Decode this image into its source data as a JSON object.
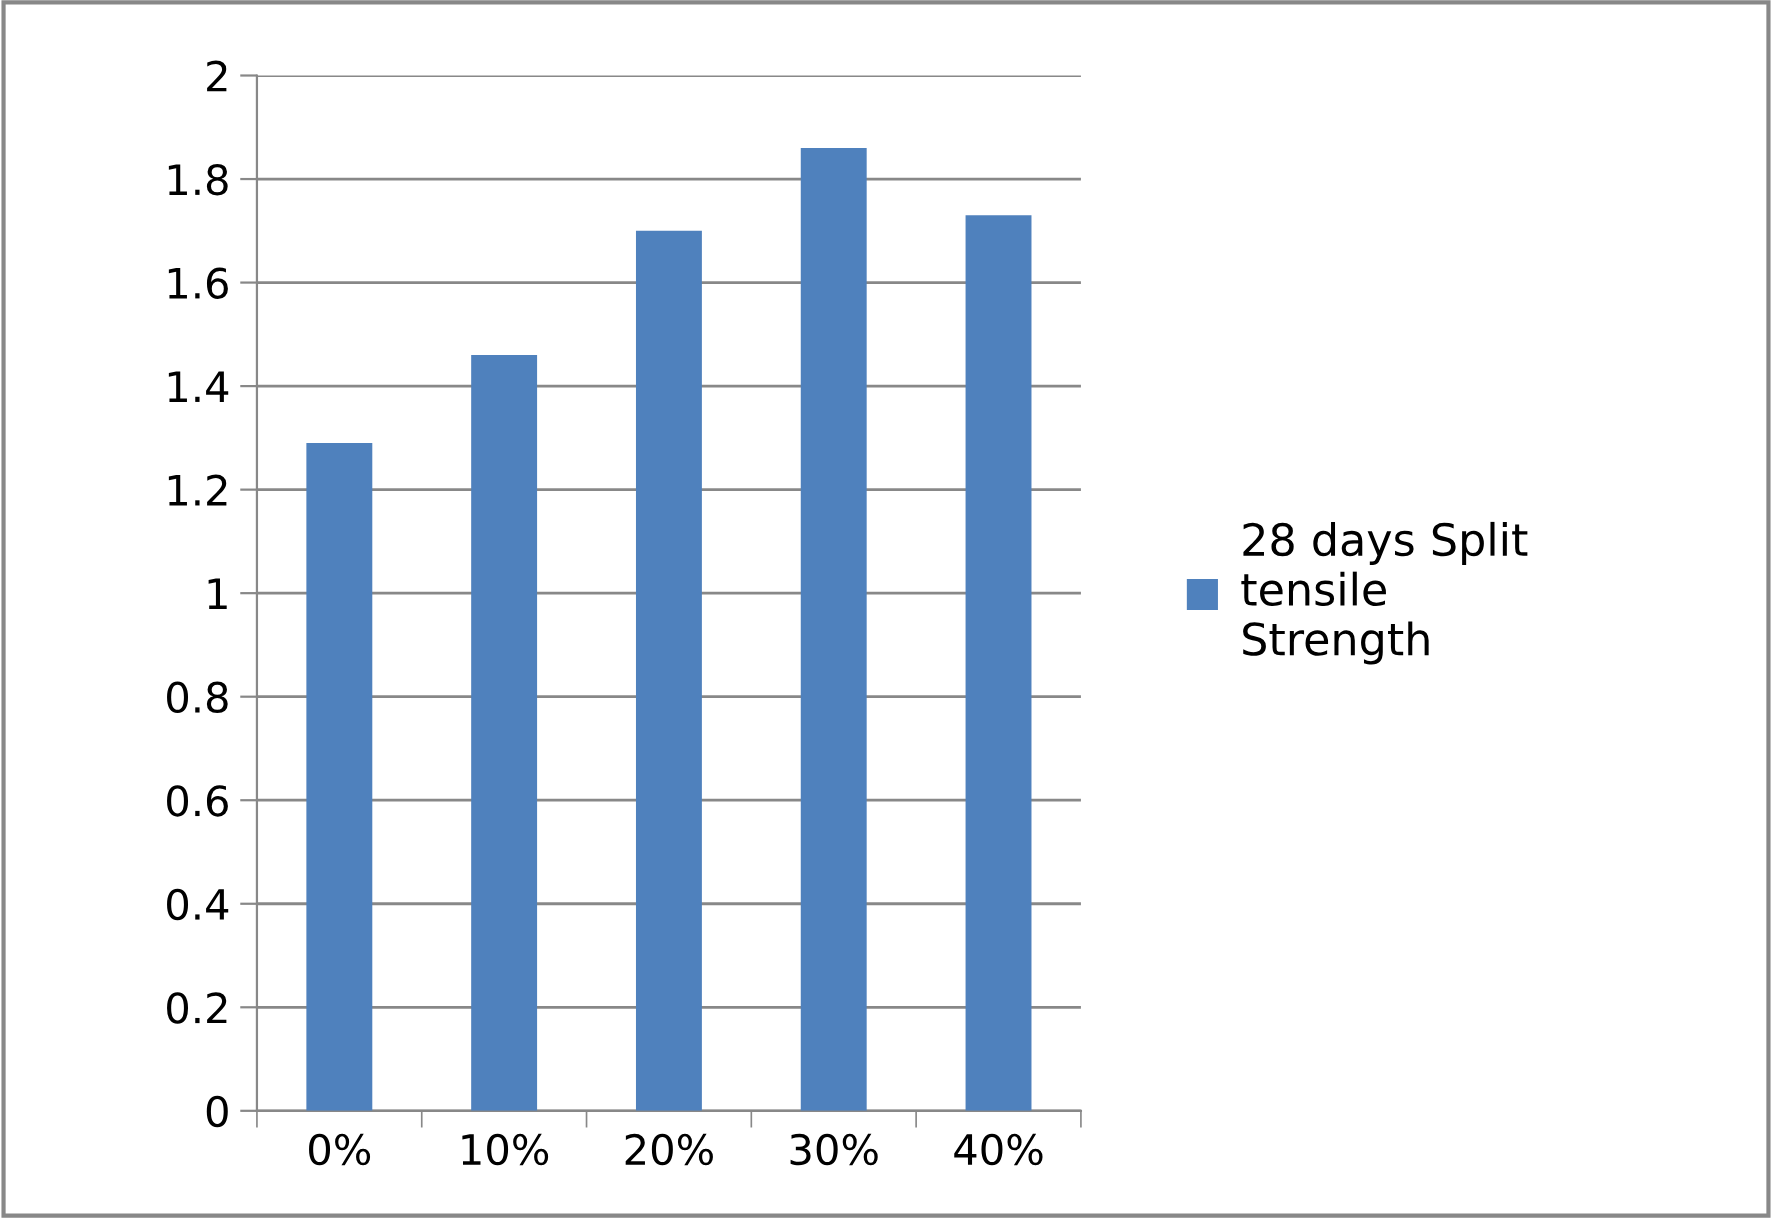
{
  "chart_data": {
    "type": "bar",
    "categories": [
      "0%",
      "10%",
      "20%",
      "30%",
      "40%"
    ],
    "series": [
      {
        "name": "28 days Split\ntensile\nStrength",
        "color": "#4f81bd",
        "values": [
          1.29,
          1.46,
          1.7,
          1.86,
          1.73
        ]
      }
    ],
    "ylim": [
      0,
      2
    ],
    "yticks": [
      0,
      {
        "value": 0.2,
        "label": "0.2"
      },
      {
        "value": 0.4,
        "label": "0.4"
      },
      {
        "value": 0.6,
        "label": "0.6"
      },
      {
        "value": 0.8,
        "label": "0.8"
      },
      1,
      {
        "value": 1.2,
        "label": "1.2"
      },
      {
        "value": 1.4,
        "label": "1.4"
      },
      {
        "value": 1.6,
        "label": "1.6"
      },
      {
        "value": 1.8,
        "label": "1.8"
      },
      2
    ],
    "grid": "y",
    "legend": "right"
  }
}
